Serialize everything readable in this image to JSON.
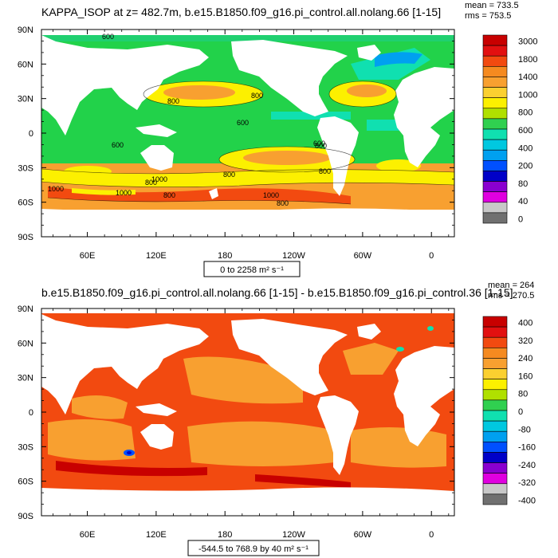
{
  "chart_data": [
    {
      "type": "heatmap",
      "title": "KAPPA_ISOP at z= 482.7m, b.e15.B1850.f09_g16.pi_control.all.nolang.66 [1-15]",
      "stats": {
        "mean": "mean = 733.5",
        "rms": "rms = 753.5"
      },
      "y_tick_labels": [
        "90N",
        "60N",
        "30N",
        "0",
        "30S",
        "60S",
        "90S"
      ],
      "x_tick_labels": [
        "60E",
        "120E",
        "180",
        "120W",
        "60W",
        "0"
      ],
      "ylim": [
        -90,
        90
      ],
      "xlim": [
        20,
        380
      ],
      "range_label": "0 to 2258 m² s⁻¹",
      "contour_labels": [
        "600",
        "800",
        "800",
        "800",
        "800",
        "600",
        "600",
        "600",
        "800",
        "1000",
        "1000",
        "1000",
        "800",
        "800",
        "800",
        "1000"
      ],
      "colorbar": {
        "labels": [
          "3000",
          "1800",
          "1400",
          "1000",
          "800",
          "600",
          "400",
          "200",
          "80",
          "40",
          "0"
        ],
        "colors": [
          "#c80000",
          "#e21010",
          "#f24a10",
          "#f58a20",
          "#f8a030",
          "#fbd030",
          "#fcf000",
          "#b0e000",
          "#30d050",
          "#10e0b0",
          "#00c8e0",
          "#00a0f0",
          "#0050ff",
          "#0000c8",
          "#8a00d0",
          "#e000e0",
          "#c8c8c8",
          "#707070"
        ]
      }
    },
    {
      "type": "heatmap",
      "title": "b.e15.B1850.f09_g16.pi_control.all.nolang.66 [1-15] - b.e15.B1850.f09_g16.pi_control.36 [1-15]",
      "stats": {
        "mean": "mean = 264",
        "rms": "rms = 270.5"
      },
      "y_tick_labels": [
        "90N",
        "60N",
        "30N",
        "0",
        "30S",
        "60S",
        "90S"
      ],
      "x_tick_labels": [
        "60E",
        "120E",
        "180",
        "120W",
        "60W",
        "0"
      ],
      "ylim": [
        -90,
        90
      ],
      "xlim": [
        20,
        380
      ],
      "range_label": "-544.5 to 768.9 by 40 m² s⁻¹",
      "colorbar": {
        "labels": [
          "400",
          "320",
          "240",
          "160",
          "80",
          "0",
          "-80",
          "-160",
          "-240",
          "-320",
          "-400"
        ],
        "colors": [
          "#c80000",
          "#e21010",
          "#f24a10",
          "#f58a20",
          "#f8a030",
          "#fbd030",
          "#fcf000",
          "#b0e000",
          "#30d050",
          "#10e0b0",
          "#00c8e0",
          "#00a0f0",
          "#0050ff",
          "#0000c8",
          "#8a00d0",
          "#e000e0",
          "#c8c8c8",
          "#707070"
        ]
      }
    }
  ]
}
